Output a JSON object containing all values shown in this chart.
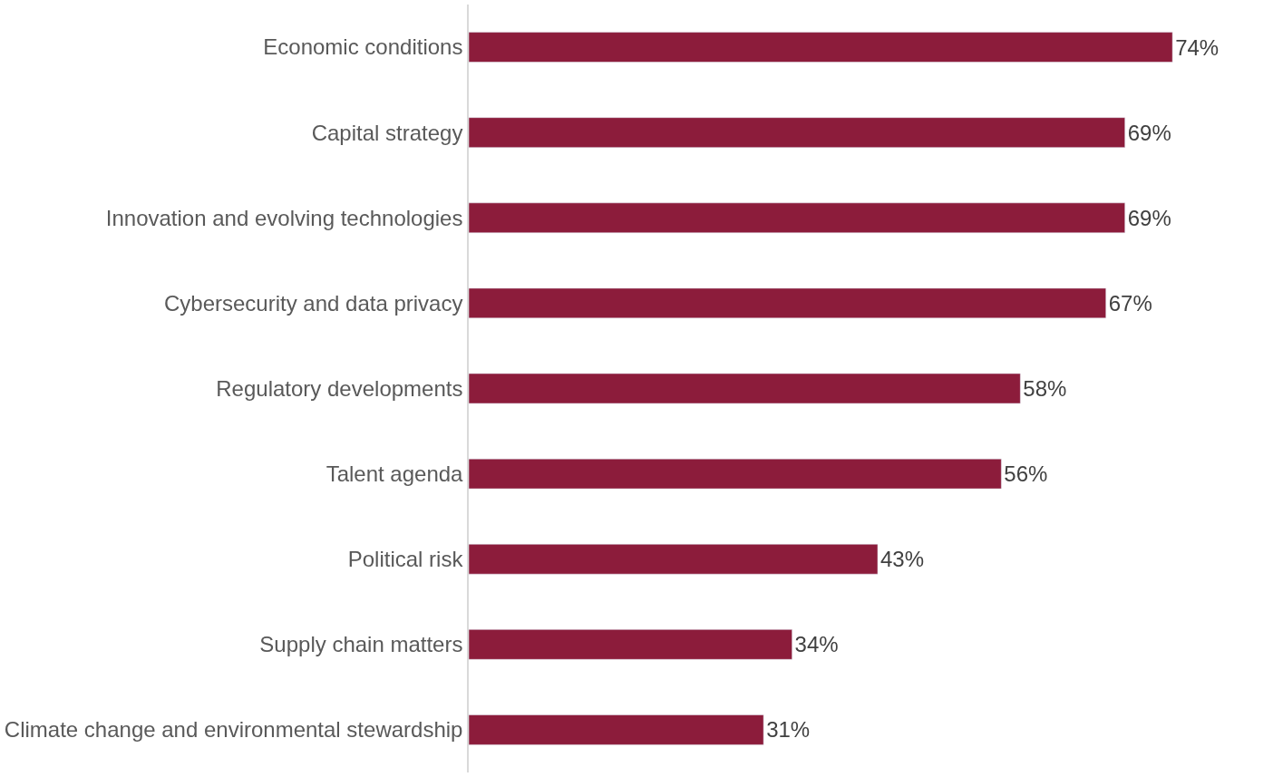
{
  "chart_data": {
    "type": "bar",
    "orientation": "horizontal",
    "categories": [
      "Economic conditions",
      "Capital strategy",
      "Innovation and evolving technologies",
      "Cybersecurity and data privacy",
      "Regulatory developments",
      "Talent agenda",
      "Political risk",
      "Supply chain matters",
      "Climate change and environmental stewardship"
    ],
    "values": [
      74,
      69,
      69,
      67,
      58,
      56,
      43,
      34,
      31
    ],
    "value_labels": [
      "74%",
      "69%",
      "69%",
      "67%",
      "58%",
      "56%",
      "43%",
      "34%",
      "31%"
    ],
    "color": "#8c1c3b",
    "legend": false,
    "tick_labels": "y"
  }
}
